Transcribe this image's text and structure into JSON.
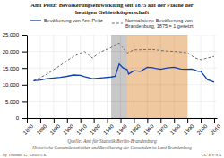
{
  "chart_data": {
    "type": "line",
    "title": "Amt Peitz: Bevölkerungsentwicklung seit 1875 auf der Fläche der\nheutigen Gebietskörperschaft",
    "xlim": [
      1870,
      2012
    ],
    "ylim": [
      0,
      25000
    ],
    "xticks": [
      1870,
      1880,
      1890,
      1900,
      1910,
      1920,
      1930,
      1940,
      1950,
      1960,
      1970,
      1980,
      1990,
      2000,
      2010
    ],
    "yticks": [
      0,
      {
        "value": 5000,
        "label": "5.000"
      },
      {
        "value": 10000,
        "label": "10.000"
      },
      {
        "value": 15000,
        "label": "15.000"
      },
      {
        "value": 20000,
        "label": "20.000"
      },
      {
        "value": 25000,
        "label": "25.000"
      }
    ],
    "grid": true,
    "legend": "top",
    "series": [
      {
        "name": "Bevölkerung von Amt Peitz",
        "color": "#1040b0",
        "line_style": "solid",
        "x": [
          1875,
          1880,
          1885,
          1890,
          1895,
          1900,
          1905,
          1910,
          1913,
          1919,
          1925,
          1933,
          1936,
          1939,
          1942,
          1945,
          1946,
          1950,
          1955,
          1960,
          1964,
          1966,
          1970,
          1975,
          1980,
          1985,
          1990,
          1993,
          1995,
          1998,
          2000,
          2005,
          2010
        ],
        "values": [
          11200,
          11400,
          11800,
          12000,
          12200,
          12500,
          12900,
          12800,
          12400,
          11800,
          12000,
          12300,
          12500,
          16200,
          15000,
          14500,
          13200,
          14200,
          14000,
          15200,
          15100,
          14900,
          14600,
          15000,
          15200,
          14700,
          14600,
          14700,
          14500,
          14000,
          14000,
          11500,
          10800
        ]
      },
      {
        "name": "Normalisierte Bevölkerung von\nBrandenburg, 1875 = 1 gesetzt",
        "color": "#707070",
        "line_style": "dashed",
        "x": [
          1875,
          1880,
          1885,
          1890,
          1895,
          1900,
          1905,
          1910,
          1913,
          1919,
          1925,
          1933,
          1936,
          1939,
          1942,
          1945,
          1950,
          1955,
          1960,
          1964,
          1966,
          1970,
          1975,
          1980,
          1985,
          1990,
          1993,
          1995,
          1998,
          2000,
          2005,
          2010
        ],
        "values": [
          11200,
          12100,
          13200,
          14500,
          15800,
          17200,
          18500,
          19500,
          20000,
          18000,
          19800,
          21200,
          22000,
          22500,
          21000,
          19500,
          20500,
          20500,
          20600,
          20600,
          20500,
          20300,
          20100,
          20000,
          19800,
          19600,
          18800,
          18200,
          17700,
          17500,
          18000,
          18500
        ]
      }
    ],
    "spans": [
      {
        "start": 1933,
        "end": 1945,
        "color": "#c8c8c8"
      },
      {
        "start": 1945,
        "end": 1990,
        "color": "#f0c8a0"
      }
    ],
    "annotations": [
      "Quelle: Amt für Statistik Berlin-Brandenburg",
      "Historische Gemeindestatistiken und Bevölkerung der Gemeinden im Land Brandenburg",
      "by Thomas G. Eifler/e.k.",
      "CC BY-SA"
    ]
  }
}
